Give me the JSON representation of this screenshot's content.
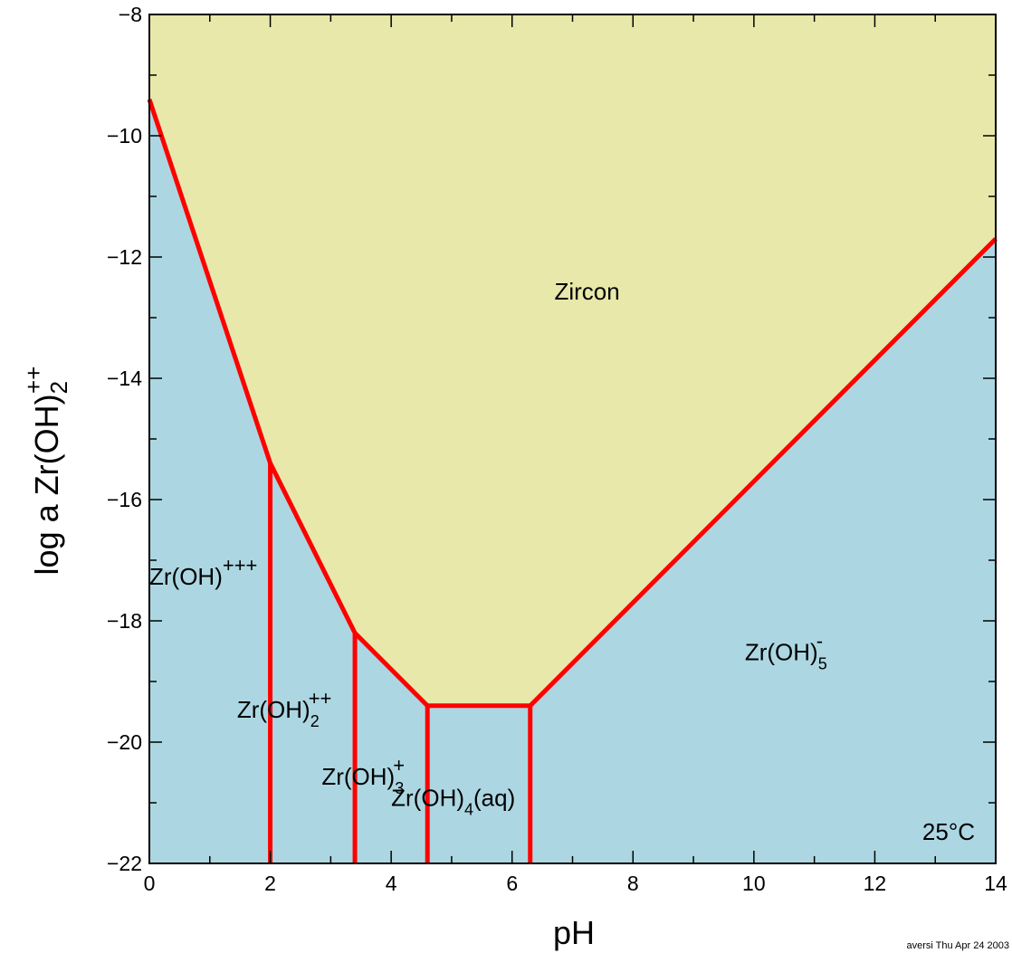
{
  "chart_data": {
    "type": "area",
    "xlabel": "pH",
    "ylabel": {
      "prefix": "log a Zr(OH)",
      "sub": "2",
      "sup": "++"
    },
    "xlim": [
      0,
      14
    ],
    "ylim": [
      -22,
      -8
    ],
    "xticks": [
      0,
      2,
      4,
      6,
      8,
      10,
      12,
      14
    ],
    "yticks": [
      -22,
      -20,
      -18,
      -16,
      -14,
      -12,
      -10,
      -8
    ],
    "ytick_labels": [
      "−22",
      "−20",
      "−18",
      "−16",
      "−14",
      "−12",
      "−10",
      "−8"
    ],
    "minor_tick_step": 1,
    "grid": false,
    "colors": {
      "mineral_field": "#e8e8aa",
      "aqueous_field": "#acd7e2",
      "boundary": "#ff0000",
      "frame": "#000000"
    },
    "mineral_boundary": [
      {
        "x": 0.0,
        "y": -9.4
      },
      {
        "x": 2.0,
        "y": -15.4
      },
      {
        "x": 3.4,
        "y": -18.2
      },
      {
        "x": 4.6,
        "y": -19.4
      },
      {
        "x": 6.3,
        "y": -19.4
      },
      {
        "x": 14.0,
        "y": -11.7
      }
    ],
    "aqueous_boundaries": [
      {
        "x": 2.0,
        "y_bottom": -22,
        "y_top": -15.4
      },
      {
        "x": 3.4,
        "y_bottom": -22,
        "y_top": -18.2
      },
      {
        "x": 4.6,
        "y_bottom": -22,
        "y_top": -19.4
      },
      {
        "x": 6.3,
        "y_bottom": -22,
        "y_top": -19.4
      }
    ],
    "fields": [
      {
        "name": "Zircon",
        "base": "Zircon",
        "sub": "",
        "sup": "",
        "x": 6.7,
        "y": -12.7
      },
      {
        "name": "Zr(OH)+++",
        "base": "Zr(OH)",
        "sub": "",
        "sup": "+++",
        "x": 0.0,
        "y": -17.4
      },
      {
        "name": "Zr(OH)2++",
        "base": "Zr(OH)",
        "sub": "2",
        "sup": "++",
        "x": 1.45,
        "y": -19.6
      },
      {
        "name": "Zr(OH)3+",
        "base": "Zr(OH)",
        "sub": "3",
        "sup": "+",
        "x": 2.85,
        "y": -20.7
      },
      {
        "name": "Zr(OH)4(aq)",
        "base": "Zr(OH)",
        "sub": "4",
        "sup": "",
        "tail": "(aq)",
        "x": 4.0,
        "y": -21.05
      },
      {
        "name": "Zr(OH)5-",
        "base": "Zr(OH)",
        "sub": "5",
        "sup": "-",
        "x": 9.85,
        "y": -18.65
      }
    ],
    "annotation": "25°C",
    "footer": "aversi Thu Apr 24 2003"
  }
}
